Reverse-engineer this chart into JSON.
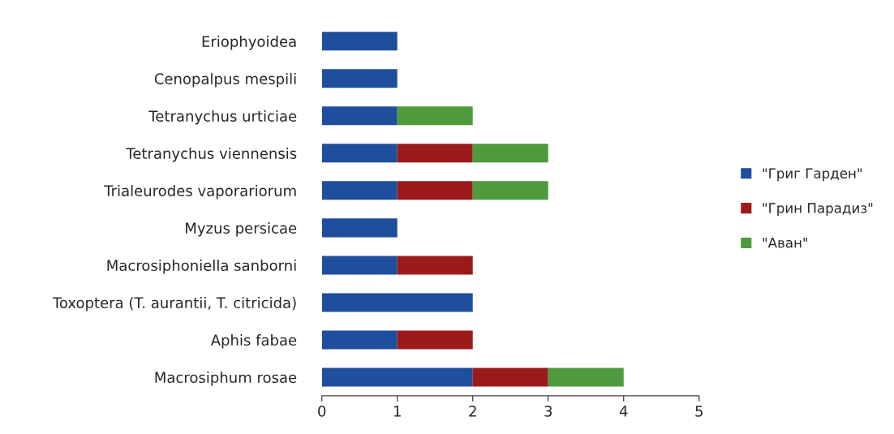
{
  "chart_data": {
    "type": "bar",
    "orientation": "horizontal",
    "stacked": true,
    "categories": [
      "Eriophyoidea",
      "Cenopalpus mespili",
      "Tetranychus urticiae",
      "Tetranychus viennensis",
      "Trialeurodes vaporariorum",
      "Myzus persicae",
      "Macrosiphoniella sanborni",
      "Toxoptera (T. aurantii, T. citricida)",
      "Aphis fabae",
      "Macrosiphum rosae"
    ],
    "series": [
      {
        "name": "\"Григ Гарден\"",
        "color": "#1f4e9c",
        "values": [
          1,
          1,
          1,
          1,
          1,
          1,
          1,
          2,
          1,
          2
        ]
      },
      {
        "name": "\"Грин Парадиз\"",
        "color": "#9b1b1b",
        "values": [
          null,
          null,
          null,
          1,
          1,
          null,
          1,
          null,
          1,
          1
        ]
      },
      {
        "name": "\"Аван\"",
        "color": "#4e9a3c",
        "values": [
          null,
          null,
          1,
          1,
          1,
          null,
          null,
          null,
          null,
          1
        ]
      }
    ],
    "xlim": [
      0,
      5
    ],
    "xticks": [
      0,
      1,
      2,
      3,
      4,
      5
    ],
    "grid": false,
    "legend": "right"
  }
}
